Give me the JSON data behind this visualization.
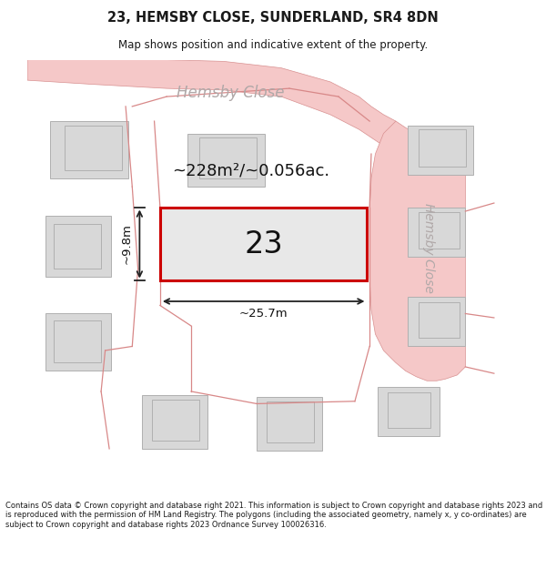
{
  "title": "23, HEMSBY CLOSE, SUNDERLAND, SR4 8DN",
  "subtitle": "Map shows position and indicative extent of the property.",
  "footer": "Contains OS data © Crown copyright and database right 2021. This information is subject to Crown copyright and database rights 2023 and is reproduced with the permission of HM Land Registry. The polygons (including the associated geometry, namely x, y co-ordinates) are subject to Crown copyright and database rights 2023 Ordnance Survey 100026316.",
  "title_color": "#1a1a1a",
  "map_bg": "#f0efe8",
  "road_fill": "#f5c8c8",
  "road_edge": "#d89090",
  "building_fill": "#d8d8d8",
  "building_edge": "#b0b0b0",
  "plot_fill": "#e8e8e8",
  "plot_edge": "#cc0000",
  "street_label_color": "#b0a8a8",
  "measure_color": "#222222",
  "area_text": "~228m²/~0.056ac.",
  "width_text": "~25.7m",
  "height_text": "~9.8m",
  "number_text": "23"
}
